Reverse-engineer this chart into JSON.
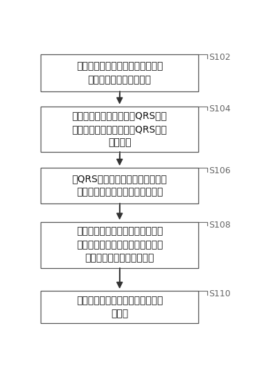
{
  "background_color": "#ffffff",
  "boxes": [
    {
      "text": "获取运动心电数据；运动心电数据\n包括运动阶段的心电数据",
      "label": "S102"
    },
    {
      "text": "对运动阶段的心电数据的QRS波群\n数据求均值，得到相应的QRS波群\n数据均值",
      "label": "S104"
    },
    {
      "text": "对QRS波群数据均值进行高频滤波\n处理，得到运动阶段的高频心电图",
      "label": "S106"
    },
    {
      "text": "对运动阶段的心电数据进行分析，\n按照心脏激动的时间顺序，将体表\n电位的变化形成低频心电图",
      "label": "S108"
    },
    {
      "text": "输出运动阶段的高频心电图和低频\n心电图",
      "label": "S110"
    }
  ],
  "box_edge_color": "#555555",
  "box_face_color": "#ffffff",
  "arrow_color": "#333333",
  "label_color": "#666666",
  "text_color": "#111111",
  "text_fontsize": 10.0,
  "label_fontsize": 9.0
}
